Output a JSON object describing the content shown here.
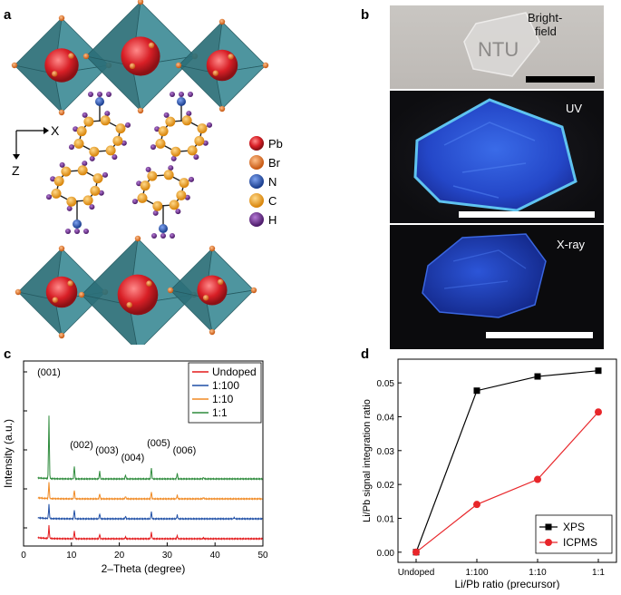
{
  "panels": {
    "a": "a",
    "b": "b",
    "c": "c",
    "d": "d"
  },
  "structure": {
    "axis_x": "X",
    "axis_z": "Z",
    "legend": [
      {
        "label": "Pb",
        "color": "#d81f26"
      },
      {
        "label": "Br",
        "color": "#e8792c"
      },
      {
        "label": "N",
        "color": "#2a56b8"
      },
      {
        "label": "C",
        "color": "#f0a41e"
      },
      {
        "label": "H",
        "color": "#6b2a8c"
      }
    ],
    "colors": {
      "octahedron": "#3f8d97",
      "octahedron_dark": "#2c6f78",
      "bond": "#222222"
    }
  },
  "photos": {
    "brightfield": {
      "label_line1": "Bright-",
      "label_line2": "field",
      "logo_text": "NTU"
    },
    "uv": {
      "label": "UV"
    },
    "xray": {
      "label": "X-ray"
    }
  },
  "chart_data": [
    {
      "id": "c",
      "type": "line",
      "title": "",
      "xlabel": "2–Theta (degree)",
      "ylabel": "Intensity (a.u.)",
      "xlim": [
        0,
        50
      ],
      "xticks": [
        0,
        10,
        20,
        30,
        40,
        50
      ],
      "yticks_labeled": false,
      "series": [
        {
          "name": "Undoped",
          "color": "#e31a1c",
          "baseline": 0,
          "peaks": [
            [
              5.3,
              1.0
            ],
            [
              10.6,
              0.6
            ],
            [
              15.9,
              0.35
            ],
            [
              21.3,
              0.15
            ],
            [
              26.7,
              0.5
            ],
            [
              32.1,
              0.25
            ],
            [
              37.6,
              0.08
            ]
          ]
        },
        {
          "name": "1:100",
          "color": "#1f4fa6",
          "baseline": 1,
          "peaks": [
            [
              5.3,
              1.1
            ],
            [
              10.6,
              0.7
            ],
            [
              15.9,
              0.4
            ],
            [
              21.3,
              0.2
            ],
            [
              26.7,
              0.55
            ],
            [
              32.1,
              0.3
            ],
            [
              44.0,
              0.12
            ]
          ]
        },
        {
          "name": "1:10",
          "color": "#f08a24",
          "baseline": 2,
          "peaks": [
            [
              5.3,
              1.3
            ],
            [
              10.6,
              0.7
            ],
            [
              15.9,
              0.4
            ],
            [
              21.3,
              0.2
            ],
            [
              26.7,
              0.55
            ],
            [
              32.1,
              0.3
            ],
            [
              37.6,
              0.1
            ]
          ]
        },
        {
          "name": "1:1",
          "color": "#2e8b3c",
          "baseline": 3,
          "peaks": [
            [
              5.3,
              5.0
            ],
            [
              10.6,
              1.0
            ],
            [
              15.9,
              0.6
            ],
            [
              21.3,
              0.3
            ],
            [
              26.7,
              0.9
            ],
            [
              32.1,
              0.45
            ],
            [
              37.6,
              0.12
            ]
          ]
        }
      ],
      "annotations": [
        {
          "text": "(001)",
          "x": 5.3
        },
        {
          "text": "(002)",
          "x": 10.6
        },
        {
          "text": "(003)",
          "x": 15.9
        },
        {
          "text": "(004)",
          "x": 21.3
        },
        {
          "text": "(005)",
          "x": 26.7
        },
        {
          "text": "(006)",
          "x": 32.1
        }
      ],
      "legend": [
        "Undoped",
        "1:100",
        "1:10",
        "1:1"
      ]
    },
    {
      "id": "d",
      "type": "line",
      "title": "",
      "xlabel": "Li/Pb ratio (precursor)",
      "ylabel": "Li/Pb signal integration ratio",
      "categories": [
        "Undoped",
        "1:100",
        "1:10",
        "1:1"
      ],
      "ylim": [
        -0.003,
        0.057
      ],
      "yticks": [
        0.0,
        0.01,
        0.02,
        0.03,
        0.04,
        0.05
      ],
      "ytick_labels": [
        "0.00",
        "0.01",
        "0.02",
        "0.03",
        "0.04",
        "0.05"
      ],
      "series": [
        {
          "name": "XPS",
          "color": "#000000",
          "marker": "square",
          "values": [
            0.0,
            0.0477,
            0.0519,
            0.0536
          ]
        },
        {
          "name": "ICPMS",
          "color": "#e8262a",
          "marker": "circle",
          "values": [
            0.0,
            0.0141,
            0.0215,
            0.0414
          ]
        }
      ],
      "legend": [
        "XPS",
        "ICPMS"
      ]
    }
  ]
}
